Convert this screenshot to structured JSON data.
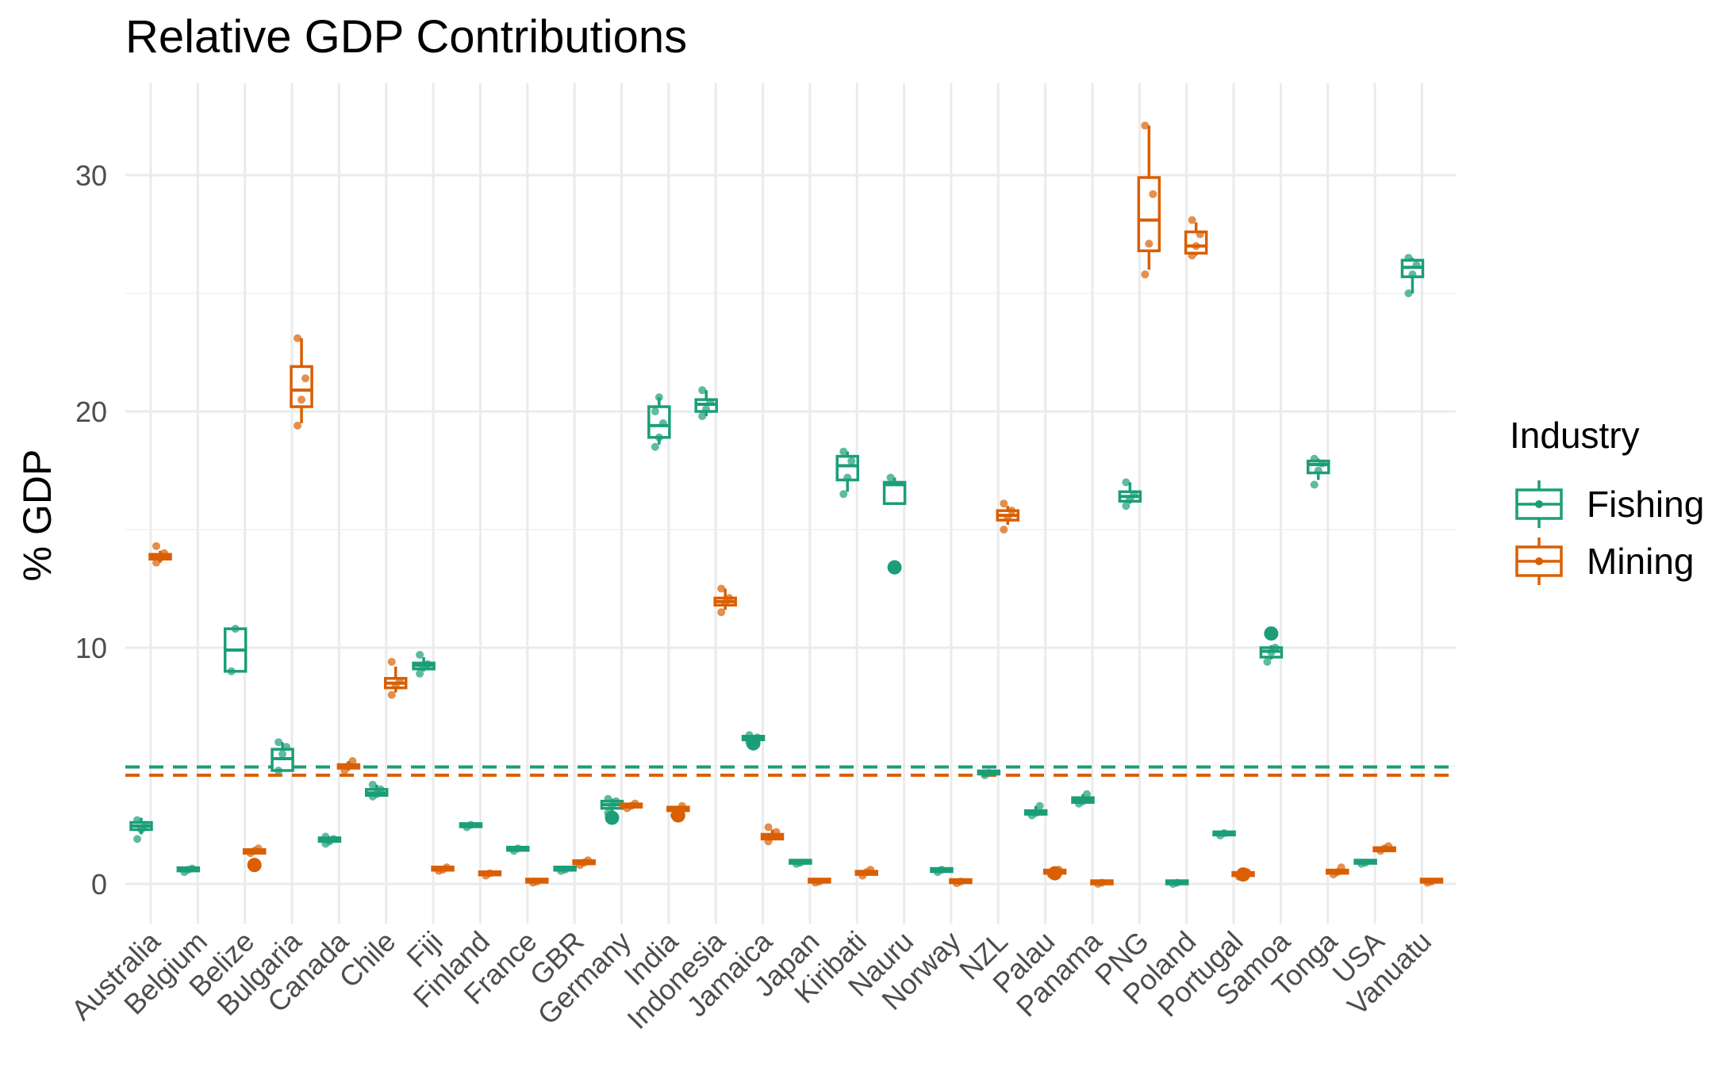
{
  "chart_data": {
    "type": "boxplot",
    "title": "Relative GDP Contributions",
    "xlabel": "",
    "ylabel": "% GDP",
    "ylim": [
      -1.8,
      33.5
    ],
    "yticks": [
      0,
      10,
      20,
      30
    ],
    "grid": true,
    "legend": {
      "title": "Industry",
      "position": "right"
    },
    "categories": [
      "Australia",
      "Belgium",
      "Belize",
      "Bulgaria",
      "Canada",
      "Chile",
      "Fiji",
      "Finland",
      "France",
      "GBR",
      "Germany",
      "India",
      "Indonesia",
      "Jamaica",
      "Japan",
      "Kiribati",
      "Nauru",
      "Norway",
      "NZL",
      "Palau",
      "Panama",
      "PNG",
      "Poland",
      "Portugal",
      "Samoa",
      "Tonga",
      "USA",
      "Vanuatu"
    ],
    "reference_lines": [
      {
        "series": "Fishing",
        "y": 4.95,
        "style": "dashed"
      },
      {
        "series": "Mining",
        "y": 4.6,
        "style": "dashed"
      }
    ],
    "series": [
      {
        "name": "Fishing",
        "color": "#1b9e77",
        "boxes": [
          {
            "category": "Australia",
            "lower": 2.1,
            "q1": 2.3,
            "median": 2.45,
            "q3": 2.6,
            "upper": 2.8,
            "points": [
              1.9,
              2.3,
              2.5,
              2.7
            ],
            "outliers": []
          },
          {
            "category": "Belgium",
            "lower": 0.5,
            "q1": 0.55,
            "median": 0.6,
            "q3": 0.65,
            "upper": 0.7,
            "points": [
              0.5,
              0.6,
              0.65
            ],
            "outliers": []
          },
          {
            "category": "Belize",
            "lower": 9.0,
            "q1": 9.0,
            "median": 9.9,
            "q3": 10.8,
            "upper": 10.8,
            "points": [
              9.0,
              10.8
            ],
            "outliers": []
          },
          {
            "category": "Bulgaria",
            "lower": 4.8,
            "q1": 4.8,
            "median": 5.3,
            "q3": 5.7,
            "upper": 6.0,
            "points": [
              4.8,
              5.5,
              5.8,
              6.0
            ],
            "outliers": []
          },
          {
            "category": "Canada",
            "lower": 1.7,
            "q1": 1.8,
            "median": 1.9,
            "q3": 1.95,
            "upper": 2.0,
            "points": [
              1.7,
              1.8,
              1.9,
              2.0
            ],
            "outliers": []
          },
          {
            "category": "Chile",
            "lower": 3.7,
            "q1": 3.75,
            "median": 3.85,
            "q3": 4.0,
            "upper": 4.2,
            "points": [
              3.7,
              3.8,
              4.0,
              4.2
            ],
            "outliers": []
          },
          {
            "category": "Fiji",
            "lower": 9.0,
            "q1": 9.1,
            "median": 9.25,
            "q3": 9.35,
            "upper": 9.6,
            "points": [
              8.9,
              9.2,
              9.3,
              9.7
            ],
            "outliers": []
          },
          {
            "category": "Finland",
            "lower": 2.4,
            "q1": 2.42,
            "median": 2.45,
            "q3": 2.5,
            "upper": 2.55,
            "points": [
              2.4,
              2.5
            ],
            "outliers": []
          },
          {
            "category": "France",
            "lower": 1.4,
            "q1": 1.42,
            "median": 1.45,
            "q3": 1.5,
            "upper": 1.55,
            "points": [
              1.4,
              1.5
            ],
            "outliers": []
          },
          {
            "category": "GBR",
            "lower": 0.55,
            "q1": 0.58,
            "median": 0.6,
            "q3": 0.62,
            "upper": 0.65,
            "points": [
              0.55,
              0.6
            ],
            "outliers": []
          },
          {
            "category": "Germany",
            "lower": 3.1,
            "q1": 3.2,
            "median": 3.35,
            "q3": 3.5,
            "upper": 3.6,
            "points": [
              3.0,
              3.3,
              3.5,
              3.6
            ],
            "outliers": [
              2.8
            ]
          },
          {
            "category": "India",
            "lower": 18.6,
            "q1": 18.9,
            "median": 19.4,
            "q3": 20.2,
            "upper": 20.6,
            "points": [
              18.5,
              18.9,
              19.5,
              20.0,
              20.6
            ],
            "outliers": []
          },
          {
            "category": "Indonesia",
            "lower": 19.8,
            "q1": 20.0,
            "median": 20.3,
            "q3": 20.5,
            "upper": 20.9,
            "points": [
              19.8,
              20.1,
              20.4,
              20.9
            ],
            "outliers": []
          },
          {
            "category": "Jamaica",
            "lower": 6.0,
            "q1": 6.1,
            "median": 6.2,
            "q3": 6.25,
            "upper": 6.3,
            "points": [
              6.0,
              6.1,
              6.2,
              6.3
            ],
            "outliers": [
              5.95
            ]
          },
          {
            "category": "Japan",
            "lower": 0.85,
            "q1": 0.87,
            "median": 0.9,
            "q3": 0.92,
            "upper": 0.95,
            "points": [
              0.85,
              0.9
            ],
            "outliers": []
          },
          {
            "category": "Kiribati",
            "lower": 16.6,
            "q1": 17.1,
            "median": 17.7,
            "q3": 18.1,
            "upper": 18.3,
            "points": [
              16.5,
              17.2,
              17.9,
              18.3
            ],
            "outliers": []
          },
          {
            "category": "Nauru",
            "lower": 16.1,
            "q1": 16.1,
            "median": 16.9,
            "q3": 17.0,
            "upper": 17.2,
            "points": [
              17.2
            ],
            "outliers": [
              13.4
            ]
          },
          {
            "category": "Norway",
            "lower": 0.5,
            "q1": 0.52,
            "median": 0.55,
            "q3": 0.58,
            "upper": 0.6,
            "points": [
              0.5,
              0.6
            ],
            "outliers": []
          },
          {
            "category": "NZL",
            "lower": 4.6,
            "q1": 4.65,
            "median": 4.7,
            "q3": 4.75,
            "upper": 4.8,
            "points": [
              4.6,
              4.7
            ],
            "outliers": []
          },
          {
            "category": "Palau",
            "lower": 2.9,
            "q1": 2.95,
            "median": 3.05,
            "q3": 3.1,
            "upper": 3.3,
            "points": [
              2.9,
              3.0,
              3.3
            ],
            "outliers": []
          },
          {
            "category": "Panama",
            "lower": 3.4,
            "q1": 3.45,
            "median": 3.55,
            "q3": 3.65,
            "upper": 3.8,
            "points": [
              3.4,
              3.5,
              3.8
            ],
            "outliers": []
          },
          {
            "category": "PNG",
            "lower": 16.1,
            "q1": 16.2,
            "median": 16.4,
            "q3": 16.6,
            "upper": 17.0,
            "points": [
              16.0,
              16.3,
              16.5,
              17.0
            ],
            "outliers": []
          },
          {
            "category": "Poland",
            "lower": 0.0,
            "q1": 0.0,
            "median": 0.02,
            "q3": 0.03,
            "upper": 0.05,
            "points": [
              0.0,
              0.05
            ],
            "outliers": []
          },
          {
            "category": "Portugal",
            "lower": 2.05,
            "q1": 2.07,
            "median": 2.1,
            "q3": 2.13,
            "upper": 2.15,
            "points": [
              2.05,
              2.15
            ],
            "outliers": []
          },
          {
            "category": "Samoa",
            "lower": 9.5,
            "q1": 9.6,
            "median": 9.85,
            "q3": 10.0,
            "upper": 10.1,
            "points": [
              9.4,
              9.8,
              10.0
            ],
            "outliers": [
              10.6
            ]
          },
          {
            "category": "Tonga",
            "lower": 17.1,
            "q1": 17.4,
            "median": 17.75,
            "q3": 17.9,
            "upper": 18.0,
            "points": [
              16.9,
              17.5,
              17.8,
              18.0
            ],
            "outliers": []
          },
          {
            "category": "USA",
            "lower": 0.85,
            "q1": 0.87,
            "median": 0.9,
            "q3": 0.92,
            "upper": 0.95,
            "points": [
              0.85,
              0.9
            ],
            "outliers": []
          },
          {
            "category": "Vanuatu",
            "lower": 25.0,
            "q1": 25.7,
            "median": 26.1,
            "q3": 26.4,
            "upper": 26.5,
            "points": [
              25.0,
              25.8,
              26.2,
              26.5
            ],
            "outliers": []
          }
        ]
      },
      {
        "name": "Mining",
        "color": "#d95f02",
        "boxes": [
          {
            "category": "Australia",
            "lower": 13.6,
            "q1": 13.75,
            "median": 13.85,
            "q3": 13.95,
            "upper": 14.1,
            "points": [
              13.6,
              13.8,
              14.0,
              14.3
            ],
            "outliers": []
          },
          {
            "category": "Belize",
            "lower": 1.25,
            "q1": 1.3,
            "median": 1.35,
            "q3": 1.45,
            "upper": 1.5,
            "points": [
              1.3,
              1.4,
              1.5
            ],
            "outliers": [
              0.8
            ]
          },
          {
            "category": "Bulgaria",
            "lower": 19.5,
            "q1": 20.2,
            "median": 20.9,
            "q3": 21.9,
            "upper": 23.1,
            "points": [
              19.4,
              20.5,
              21.4,
              23.1
            ],
            "outliers": []
          },
          {
            "category": "Canada",
            "lower": 4.8,
            "q1": 4.9,
            "median": 5.0,
            "q3": 5.05,
            "upper": 5.2,
            "points": [
              4.8,
              5.0,
              5.2
            ],
            "outliers": []
          },
          {
            "category": "Chile",
            "lower": 8.1,
            "q1": 8.3,
            "median": 8.5,
            "q3": 8.7,
            "upper": 9.2,
            "points": [
              8.0,
              8.4,
              8.6,
              9.4
            ],
            "outliers": []
          },
          {
            "category": "Fiji",
            "lower": 0.55,
            "q1": 0.58,
            "median": 0.6,
            "q3": 0.65,
            "upper": 0.7,
            "points": [
              0.55,
              0.6,
              0.7
            ],
            "outliers": []
          },
          {
            "category": "Finland",
            "lower": 0.35,
            "q1": 0.38,
            "median": 0.4,
            "q3": 0.45,
            "upper": 0.5,
            "points": [
              0.35,
              0.45
            ],
            "outliers": []
          },
          {
            "category": "France",
            "lower": 0.05,
            "q1": 0.07,
            "median": 0.1,
            "q3": 0.12,
            "upper": 0.15,
            "points": [
              0.05,
              0.1
            ],
            "outliers": []
          },
          {
            "category": "GBR",
            "lower": 0.8,
            "q1": 0.85,
            "median": 0.9,
            "q3": 0.95,
            "upper": 1.0,
            "points": [
              0.8,
              0.9,
              1.0
            ],
            "outliers": []
          },
          {
            "category": "Germany",
            "lower": 3.2,
            "q1": 3.25,
            "median": 3.3,
            "q3": 3.35,
            "upper": 3.4,
            "points": [
              3.2,
              3.3,
              3.4
            ],
            "outliers": []
          },
          {
            "category": "India",
            "lower": 3.0,
            "q1": 3.1,
            "median": 3.2,
            "q3": 3.25,
            "upper": 3.3,
            "points": [
              2.9,
              3.1,
              3.3
            ],
            "outliers": [
              2.9
            ]
          },
          {
            "category": "Indonesia",
            "lower": 11.6,
            "q1": 11.8,
            "median": 11.95,
            "q3": 12.1,
            "upper": 12.5,
            "points": [
              11.5,
              11.9,
              12.1,
              12.5
            ],
            "outliers": []
          },
          {
            "category": "Jamaica",
            "lower": 1.85,
            "q1": 1.9,
            "median": 2.0,
            "q3": 2.1,
            "upper": 2.3,
            "points": [
              1.8,
              2.0,
              2.2,
              2.4
            ],
            "outliers": []
          },
          {
            "category": "Japan",
            "lower": 0.05,
            "q1": 0.07,
            "median": 0.1,
            "q3": 0.12,
            "upper": 0.15,
            "points": [
              0.05,
              0.1
            ],
            "outliers": []
          },
          {
            "category": "Kiribati",
            "lower": 0.35,
            "q1": 0.4,
            "median": 0.45,
            "q3": 0.5,
            "upper": 0.55,
            "points": [
              0.35,
              0.5,
              0.6
            ],
            "outliers": []
          },
          {
            "category": "Norway",
            "lower": 0.03,
            "q1": 0.05,
            "median": 0.07,
            "q3": 0.09,
            "upper": 0.1,
            "points": [
              0.03,
              0.1
            ],
            "outliers": []
          },
          {
            "category": "NZL",
            "lower": 15.2,
            "q1": 15.4,
            "median": 15.6,
            "q3": 15.8,
            "upper": 16.0,
            "points": [
              15.0,
              15.5,
              15.8,
              16.1
            ],
            "outliers": []
          },
          {
            "category": "Palau",
            "lower": 0.4,
            "q1": 0.45,
            "median": 0.5,
            "q3": 0.55,
            "upper": 0.6,
            "points": [
              0.4,
              0.5,
              0.6
            ],
            "outliers": [
              0.45
            ]
          },
          {
            "category": "Panama",
            "lower": 0.0,
            "q1": 0.0,
            "median": 0.02,
            "q3": 0.03,
            "upper": 0.05,
            "points": [
              0.0,
              0.05
            ],
            "outliers": []
          },
          {
            "category": "PNG",
            "lower": 26.0,
            "q1": 26.8,
            "median": 28.1,
            "q3": 29.9,
            "upper": 32.1,
            "points": [
              25.8,
              27.1,
              29.2,
              32.1
            ],
            "outliers": []
          },
          {
            "category": "Poland",
            "lower": 26.6,
            "q1": 26.7,
            "median": 27.0,
            "q3": 27.6,
            "upper": 28.0,
            "points": [
              26.6,
              27.0,
              27.5,
              28.1
            ],
            "outliers": []
          },
          {
            "category": "Portugal",
            "lower": 0.3,
            "q1": 0.35,
            "median": 0.4,
            "q3": 0.45,
            "upper": 0.5,
            "points": [
              0.3,
              0.4,
              0.5
            ],
            "outliers": [
              0.4
            ]
          },
          {
            "category": "Tonga",
            "lower": 0.4,
            "q1": 0.45,
            "median": 0.5,
            "q3": 0.55,
            "upper": 0.6,
            "points": [
              0.4,
              0.5,
              0.7
            ],
            "outliers": []
          },
          {
            "category": "USA",
            "lower": 1.35,
            "q1": 1.4,
            "median": 1.45,
            "q3": 1.5,
            "upper": 1.55,
            "points": [
              1.4,
              1.5,
              1.6
            ],
            "outliers": []
          },
          {
            "category": "Vanuatu",
            "lower": 0.05,
            "q1": 0.07,
            "median": 0.1,
            "q3": 0.12,
            "upper": 0.15,
            "points": [
              0.05,
              0.1
            ],
            "outliers": []
          }
        ]
      }
    ]
  }
}
